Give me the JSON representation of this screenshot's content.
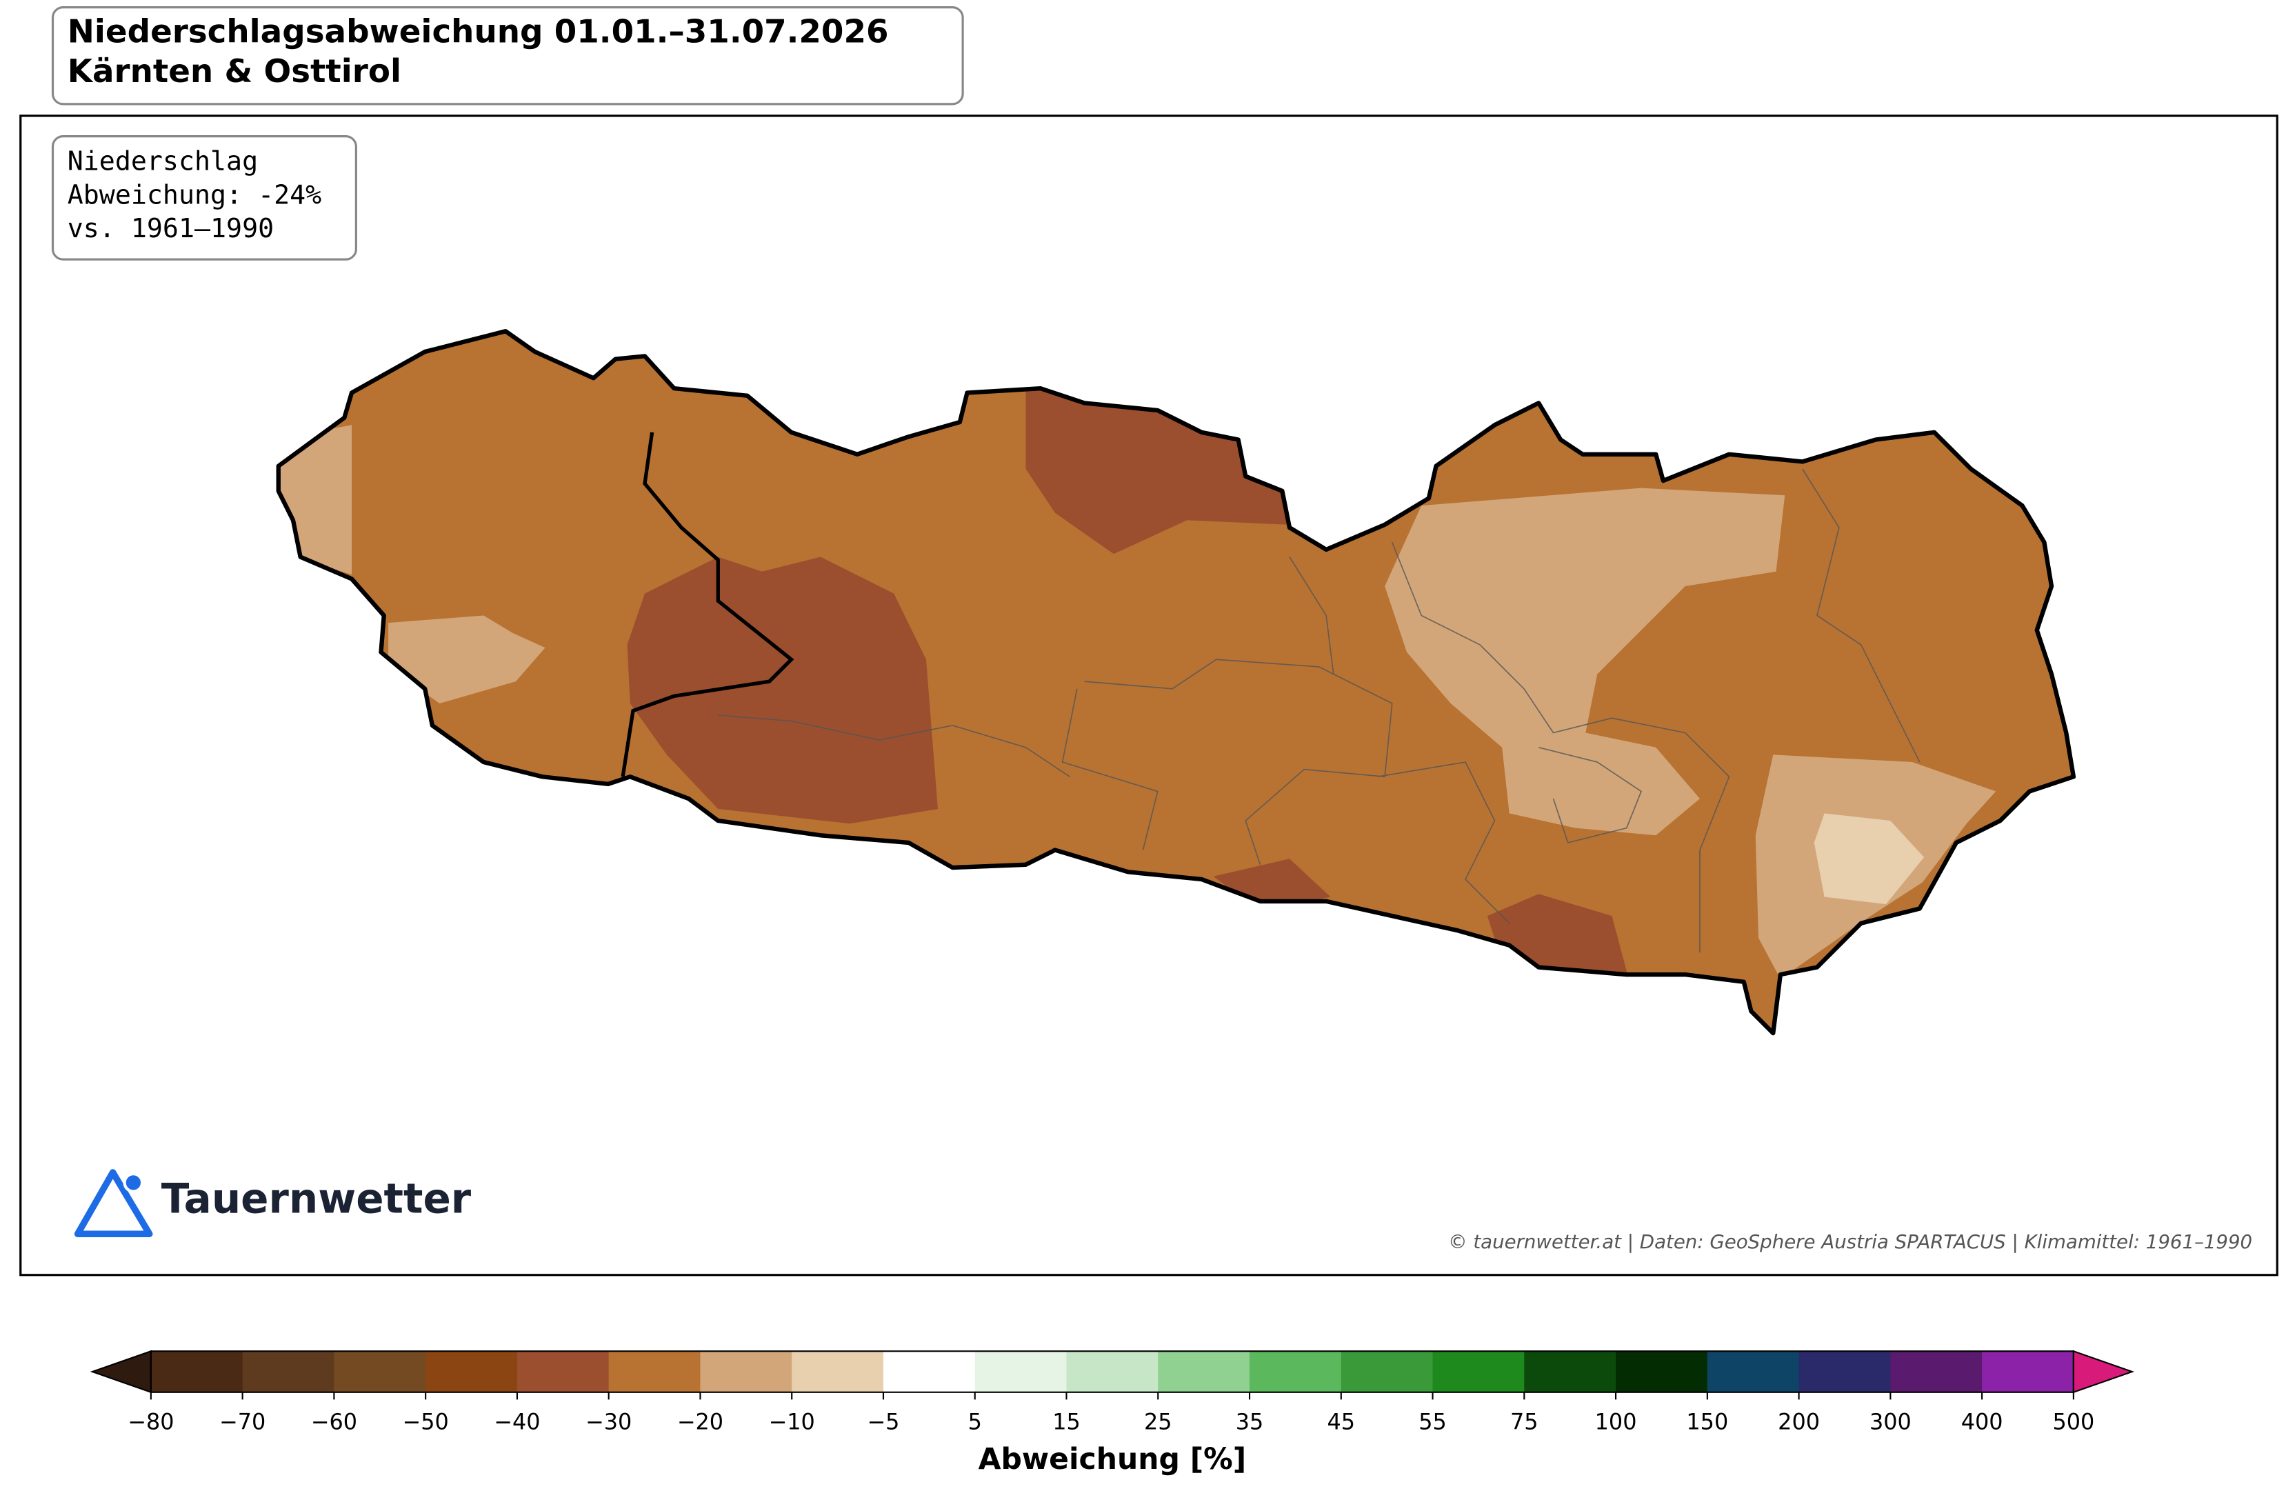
{
  "header": {
    "title_lines": [
      "Niederschlagsabweichung 01.01.–31.07.2026",
      "Kärnten & Osttirol"
    ]
  },
  "info_box": {
    "lines": [
      "Niederschlag",
      "Abweichung: -24%",
      "vs. 1961–1990"
    ]
  },
  "logo": {
    "text": "Tauernwetter"
  },
  "credit": "© tauernwetter.at | Daten: GeoSphere Austria SPARTACUS | Klimamittel: 1961–1990",
  "colorbar": {
    "label": "Abweichung [%]",
    "ticks": [
      {
        "value": -80,
        "label": "−80"
      },
      {
        "value": -70,
        "label": "−70"
      },
      {
        "value": -60,
        "label": "−60"
      },
      {
        "value": -50,
        "label": "−50"
      },
      {
        "value": -40,
        "label": "−40"
      },
      {
        "value": -30,
        "label": "−30"
      },
      {
        "value": -20,
        "label": "−20"
      },
      {
        "value": -10,
        "label": "−10"
      },
      {
        "value": -5,
        "label": "−5"
      },
      5,
      15,
      25,
      35,
      45,
      55,
      75,
      100,
      150,
      200,
      300,
      400,
      500
    ],
    "colors": [
      "#4a2a14",
      "#5e3a1e",
      "#744a22",
      "#8b4513",
      "#9c4f2e",
      "#b87333",
      "#d2a679",
      "#e8cfae",
      "#ffffff",
      "#e6f4e6",
      "#c7e6c7",
      "#90d090",
      "#5cb85c",
      "#3a9a3a",
      "#1e8a1e",
      "#0b4a0b",
      "#032c03",
      "#0e4466",
      "#2a2a6a",
      "#5a1a6e",
      "#8b22a8"
    ],
    "under_color": "#2e1a0e",
    "over_color": "#d81b7a"
  }
}
